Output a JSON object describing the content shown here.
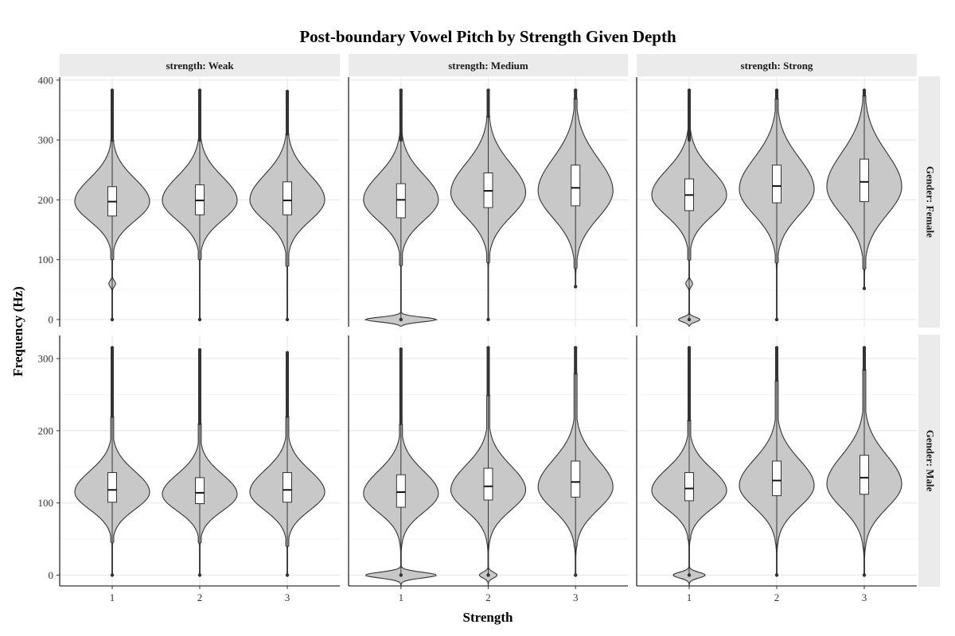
{
  "chart_data": {
    "type": "violin",
    "title": "Post-boundary Vowel Pitch by Strength Given Depth",
    "xlabel": "Strength",
    "ylabel": "Frequency (Hz)",
    "categories": [
      "1",
      "2",
      "3"
    ],
    "columns": [
      "strength: Weak",
      "strength: Medium",
      "strength: Strong"
    ],
    "rows": [
      "Gender: Female",
      "Gender: Male"
    ],
    "grid": true,
    "fill_color": "#c8c8c8",
    "row_axes": [
      {
        "ylim": [
          -12,
          405
        ],
        "ticks": [
          0,
          100,
          200,
          300,
          400
        ]
      },
      {
        "ylim": [
          -15,
          332
        ],
        "ticks": [
          0,
          100,
          200,
          300
        ]
      }
    ],
    "panels": [
      {
        "row": 0,
        "col": 0,
        "groups": [
          {
            "x": "1",
            "q1": 173,
            "median": 197,
            "q3": 222,
            "mode": 197,
            "spread": 32,
            "tail_top": 300,
            "max": 383,
            "tail_bottom": 100,
            "min": 0,
            "low_bump": 60,
            "zero_blob": 0
          },
          {
            "x": "2",
            "q1": 175,
            "median": 199,
            "q3": 225,
            "mode": 199,
            "spread": 33,
            "tail_top": 300,
            "max": 383,
            "tail_bottom": 100,
            "min": 0,
            "low_bump": 0,
            "zero_blob": 0
          },
          {
            "x": "3",
            "q1": 175,
            "median": 199,
            "q3": 230,
            "mode": 200,
            "spread": 35,
            "tail_top": 310,
            "max": 381,
            "tail_bottom": 90,
            "min": 0,
            "low_bump": 0,
            "zero_blob": 0
          }
        ]
      },
      {
        "row": 0,
        "col": 1,
        "groups": [
          {
            "x": "1",
            "q1": 170,
            "median": 200,
            "q3": 227,
            "mode": 200,
            "spread": 35,
            "tail_top": 300,
            "max": 383,
            "tail_bottom": 90,
            "min": 0,
            "low_bump": 0,
            "zero_blob": 1
          },
          {
            "x": "2",
            "q1": 187,
            "median": 215,
            "q3": 245,
            "mode": 212,
            "spread": 40,
            "tail_top": 340,
            "max": 383,
            "tail_bottom": 95,
            "min": 0,
            "low_bump": 0,
            "zero_blob": 0
          },
          {
            "x": "3",
            "q1": 190,
            "median": 220,
            "q3": 258,
            "mode": 215,
            "spread": 45,
            "tail_top": 370,
            "max": 383,
            "tail_bottom": 85,
            "min": 55,
            "low_bump": 0,
            "zero_blob": 0
          }
        ]
      },
      {
        "row": 0,
        "col": 2,
        "groups": [
          {
            "x": "1",
            "q1": 182,
            "median": 208,
            "q3": 235,
            "mode": 208,
            "spread": 35,
            "tail_top": 300,
            "max": 383,
            "tail_bottom": 100,
            "min": 0,
            "low_bump": 60,
            "zero_blob": 0.3
          },
          {
            "x": "2",
            "q1": 195,
            "median": 223,
            "q3": 258,
            "mode": 218,
            "spread": 43,
            "tail_top": 370,
            "max": 383,
            "tail_bottom": 95,
            "min": 0,
            "low_bump": 0,
            "zero_blob": 0
          },
          {
            "x": "3",
            "q1": 197,
            "median": 230,
            "q3": 268,
            "mode": 222,
            "spread": 47,
            "tail_top": 375,
            "max": 383,
            "tail_bottom": 85,
            "min": 52,
            "low_bump": 0,
            "zero_blob": 0
          }
        ]
      },
      {
        "row": 1,
        "col": 0,
        "groups": [
          {
            "x": "1",
            "q1": 101,
            "median": 118,
            "q3": 142,
            "mode": 115,
            "spread": 24,
            "tail_top": 220,
            "max": 315,
            "tail_bottom": 45,
            "min": 0,
            "low_bump": 0,
            "zero_blob": 0
          },
          {
            "x": "2",
            "q1": 99,
            "median": 114,
            "q3": 135,
            "mode": 112,
            "spread": 23,
            "tail_top": 210,
            "max": 312,
            "tail_bottom": 45,
            "min": 0,
            "low_bump": 0,
            "zero_blob": 0
          },
          {
            "x": "3",
            "q1": 101,
            "median": 118,
            "q3": 142,
            "mode": 115,
            "spread": 25,
            "tail_top": 220,
            "max": 308,
            "tail_bottom": 40,
            "min": 0,
            "low_bump": 0,
            "zero_blob": 0
          }
        ]
      },
      {
        "row": 1,
        "col": 1,
        "groups": [
          {
            "x": "1",
            "q1": 94,
            "median": 115,
            "q3": 139,
            "mode": 113,
            "spread": 26,
            "tail_top": 210,
            "max": 313,
            "tail_bottom": 45,
            "min": 0,
            "low_bump": 0,
            "zero_blob": 1
          },
          {
            "x": "2",
            "q1": 104,
            "median": 123,
            "q3": 148,
            "mode": 118,
            "spread": 28,
            "tail_top": 250,
            "max": 315,
            "tail_bottom": 45,
            "min": 0,
            "low_bump": 0,
            "zero_blob": 0.25
          },
          {
            "x": "3",
            "q1": 108,
            "median": 129,
            "q3": 158,
            "mode": 122,
            "spread": 31,
            "tail_top": 280,
            "max": 315,
            "tail_bottom": 40,
            "min": 0,
            "low_bump": 0,
            "zero_blob": 0
          }
        ]
      },
      {
        "row": 1,
        "col": 2,
        "groups": [
          {
            "x": "1",
            "q1": 103,
            "median": 120,
            "q3": 142,
            "mode": 117,
            "spread": 25,
            "tail_top": 215,
            "max": 315,
            "tail_bottom": 50,
            "min": 0,
            "low_bump": 0,
            "zero_blob": 0.45
          },
          {
            "x": "2",
            "q1": 110,
            "median": 131,
            "q3": 158,
            "mode": 124,
            "spread": 30,
            "tail_top": 270,
            "max": 315,
            "tail_bottom": 45,
            "min": 0,
            "low_bump": 0,
            "zero_blob": 0
          },
          {
            "x": "3",
            "q1": 112,
            "median": 135,
            "q3": 166,
            "mode": 126,
            "spread": 33,
            "tail_top": 285,
            "max": 315,
            "tail_bottom": 40,
            "min": 0,
            "low_bump": 0,
            "zero_blob": 0
          }
        ]
      }
    ]
  }
}
